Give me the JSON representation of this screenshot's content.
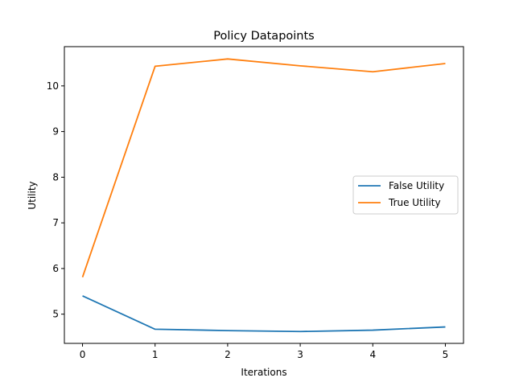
{
  "chart_data": {
    "type": "line",
    "title": "Policy Datapoints",
    "xlabel": "Iterations",
    "ylabel": "Utility",
    "x": [
      0,
      1,
      2,
      3,
      4,
      5
    ],
    "xticks": [
      "0",
      "1",
      "2",
      "3",
      "4",
      "5"
    ],
    "yticks": [
      "5",
      "6",
      "7",
      "8",
      "9",
      "10"
    ],
    "xlim": [
      -0.25,
      5.25
    ],
    "ylim": [
      4.36,
      10.86
    ],
    "grid": false,
    "legend_position": "center-right",
    "series": [
      {
        "name": "False Utility",
        "color": "#1f77b4",
        "values": [
          5.4,
          4.67,
          4.64,
          4.62,
          4.65,
          4.72
        ]
      },
      {
        "name": "True Utility",
        "color": "#ff7f0e",
        "values": [
          5.81,
          10.43,
          10.59,
          10.44,
          10.31,
          10.49
        ]
      }
    ]
  }
}
